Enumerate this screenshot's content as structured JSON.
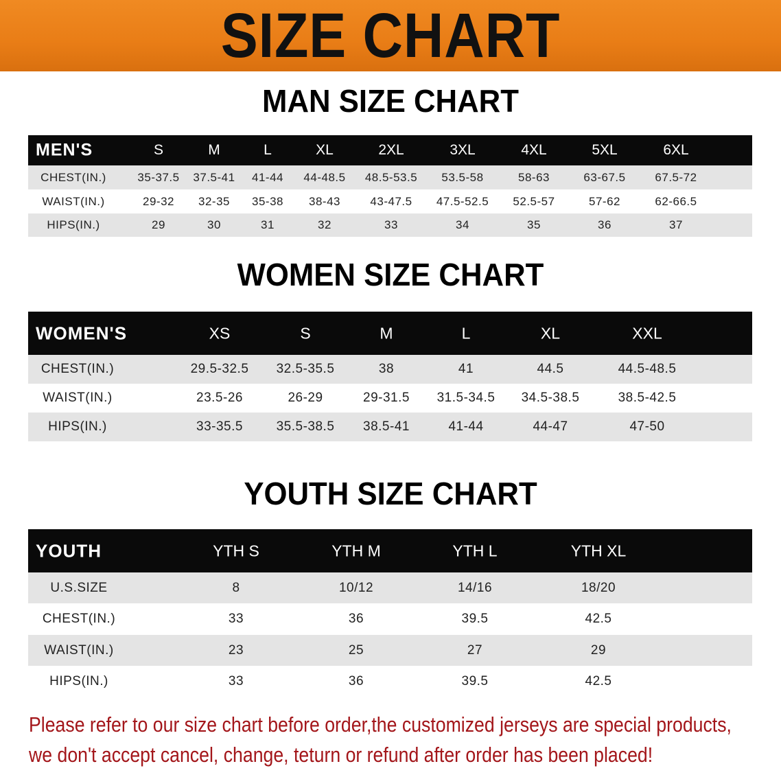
{
  "banner": {
    "title": "SIZE CHART",
    "color": "#ec8019"
  },
  "men": {
    "title": "MAN SIZE CHART",
    "header_label": "MEN'S",
    "sizes": [
      "S",
      "M",
      "L",
      "XL",
      "2XL",
      "3XL",
      "4XL",
      "5XL",
      "6XL"
    ],
    "rows": [
      {
        "label": "CHEST(IN.)",
        "values": [
          "35-37.5",
          "37.5-41",
          "41-44",
          "44-48.5",
          "48.5-53.5",
          "53.5-58",
          "58-63",
          "63-67.5",
          "67.5-72"
        ]
      },
      {
        "label": "WAIST(IN.)",
        "values": [
          "29-32",
          "32-35",
          "35-38",
          "38-43",
          "43-47.5",
          "47.5-52.5",
          "52.5-57",
          "57-62",
          "62-66.5"
        ]
      },
      {
        "label": "HIPS(IN.)",
        "values": [
          "29",
          "30",
          "31",
          "32",
          "33",
          "34",
          "35",
          "36",
          "37"
        ]
      }
    ]
  },
  "women": {
    "title": "WOMEN SIZE CHART",
    "header_label": "WOMEN'S",
    "sizes": [
      "XS",
      "S",
      "M",
      "L",
      "XL",
      "XXL"
    ],
    "rows": [
      {
        "label": "CHEST(IN.)",
        "values": [
          "29.5-32.5",
          "32.5-35.5",
          "38",
          "41",
          "44.5",
          "44.5-48.5"
        ]
      },
      {
        "label": "WAIST(IN.)",
        "values": [
          "23.5-26",
          "26-29",
          "29-31.5",
          "31.5-34.5",
          "34.5-38.5",
          "38.5-42.5"
        ]
      },
      {
        "label": "HIPS(IN.)",
        "values": [
          "33-35.5",
          "35.5-38.5",
          "38.5-41",
          "41-44",
          "44-47",
          "47-50"
        ]
      }
    ]
  },
  "youth": {
    "title": "YOUTH SIZE CHART",
    "header_label": "YOUTH",
    "sizes": [
      "YTH S",
      "YTH M",
      "YTH L",
      "YTH XL"
    ],
    "rows": [
      {
        "label": "U.S.SIZE",
        "values": [
          "8",
          "10/12",
          "14/16",
          "18/20"
        ]
      },
      {
        "label": "CHEST(IN.)",
        "values": [
          "33",
          "36",
          "39.5",
          "42.5"
        ]
      },
      {
        "label": "WAIST(IN.)",
        "values": [
          "23",
          "25",
          "27",
          "29"
        ]
      },
      {
        "label": "HIPS(IN.)",
        "values": [
          "33",
          "36",
          "39.5",
          "42.5"
        ]
      }
    ]
  },
  "notice": {
    "line1": "Please refer to our size chart before order,the customized jerseys are special products,",
    "line2": "we don't accept cancel, change, teturn or refund after order has been placed!",
    "color": "#a3161a"
  }
}
